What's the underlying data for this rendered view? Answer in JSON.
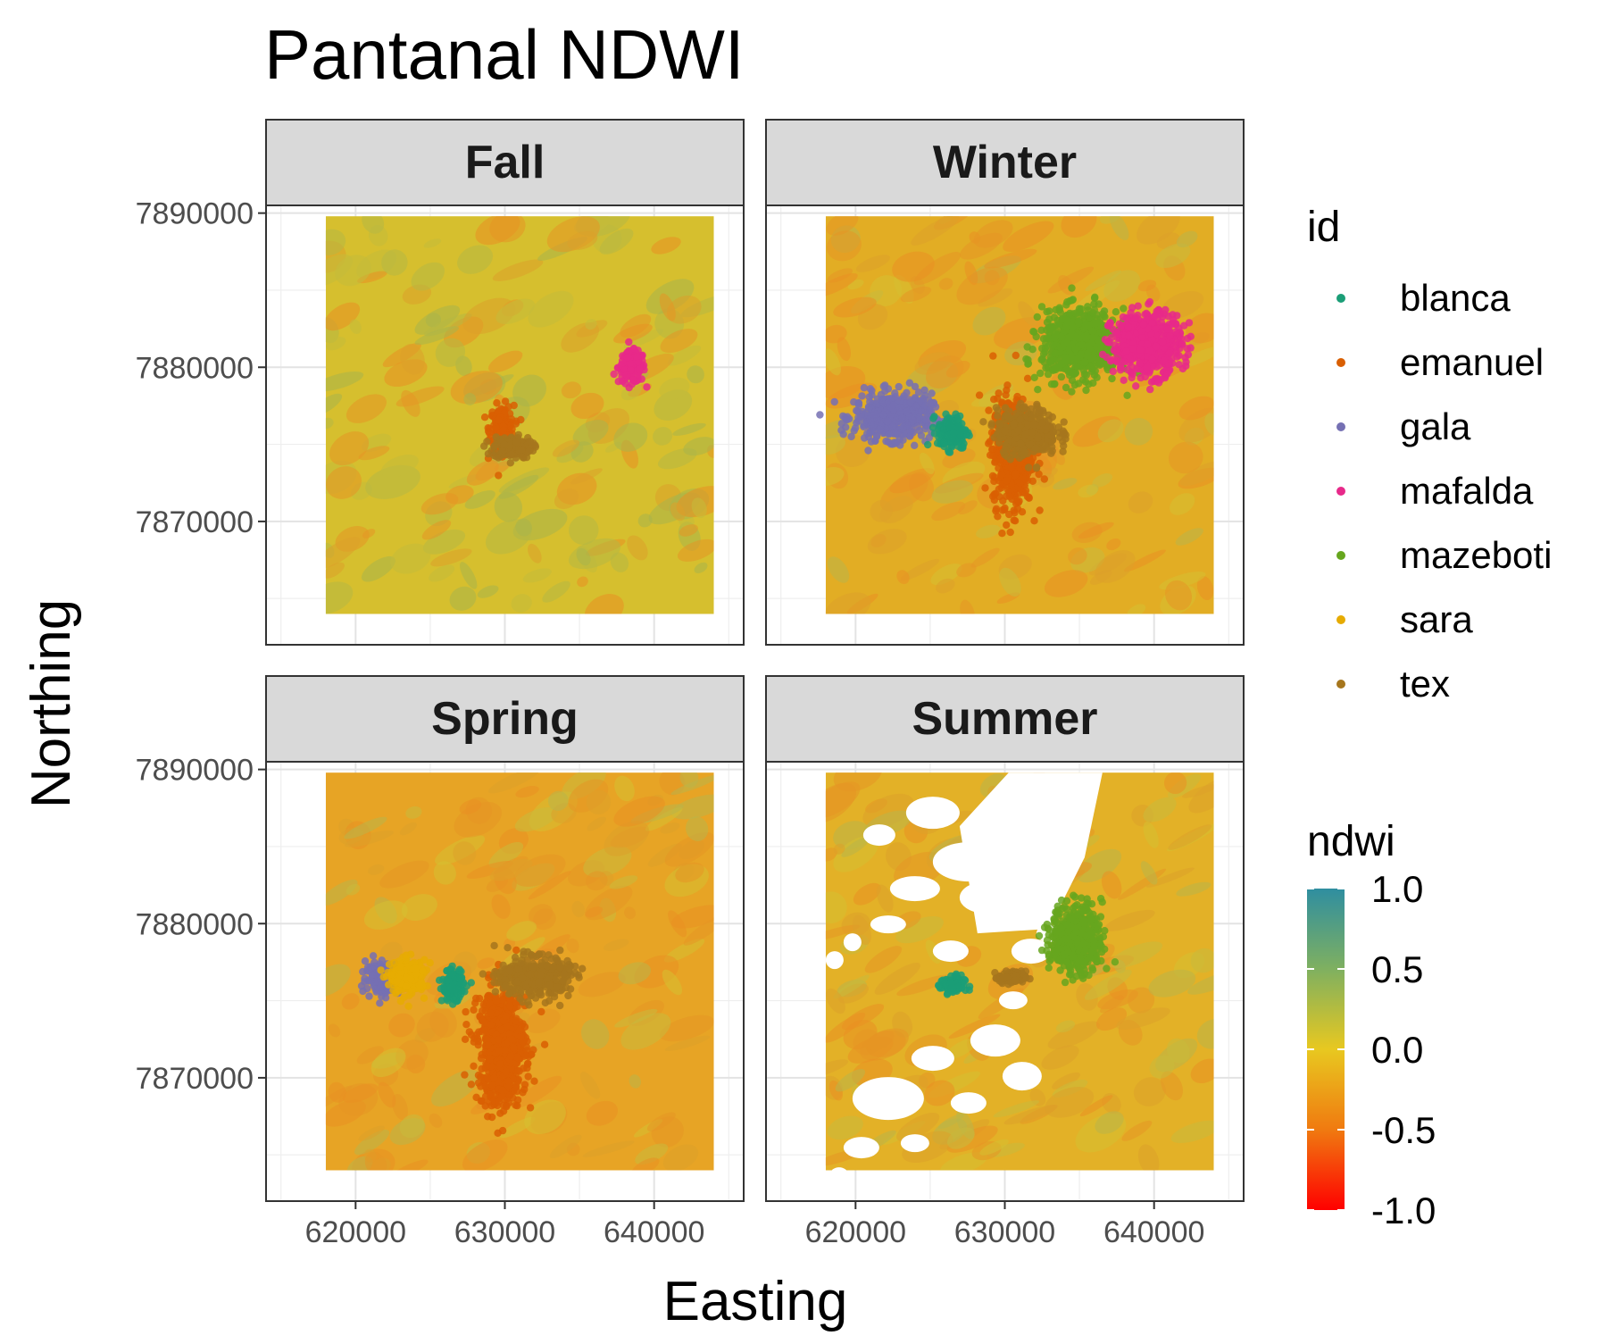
{
  "chart_data": {
    "type": "scatter",
    "title": "Pantanal NDWI",
    "xlabel": "Easting",
    "ylabel": "Northing",
    "xlim": [
      614000,
      646000
    ],
    "ylim": [
      7862000,
      7890500
    ],
    "x_ticks": [
      620000,
      630000,
      640000
    ],
    "x_tick_labels": [
      "620000",
      "630000",
      "640000"
    ],
    "y_ticks": [
      7870000,
      7880000,
      7890000
    ],
    "y_tick_labels": [
      "7870000",
      "7880000",
      "7890000"
    ],
    "grid": true,
    "facets": [
      "Fall",
      "Winter",
      "Spring",
      "Summer"
    ],
    "legend_position": "right",
    "series_legend": {
      "title": "id",
      "entries": [
        {
          "name": "blanca",
          "color": "#1b9e77"
        },
        {
          "name": "emanuel",
          "color": "#d95f02"
        },
        {
          "name": "gala",
          "color": "#7570b3"
        },
        {
          "name": "mafalda",
          "color": "#e7298a"
        },
        {
          "name": "mazeboti",
          "color": "#66a61e"
        },
        {
          "name": "sara",
          "color": "#e6ab02"
        },
        {
          "name": "tex",
          "color": "#a6761d"
        }
      ]
    },
    "colorbar": {
      "title": "ndwi",
      "limits": [
        -1.0,
        1.0
      ],
      "ticks": [
        1.0,
        0.5,
        0.0,
        -0.5,
        -1.0
      ],
      "tick_labels": [
        "1.0",
        "0.5",
        "0.0",
        "-0.5",
        "-1.0"
      ],
      "colors": [
        "#ff0000",
        "#f07a10",
        "#e8c820",
        "#7fb060",
        "#2f8ea0"
      ]
    },
    "panels": [
      {
        "season": "Fall",
        "raster_base": "#d6bf2e",
        "clusters": [
          {
            "id": "mafalda",
            "x": 638500,
            "y": 7880000,
            "spread_x": 900,
            "spread_y": 1000
          },
          {
            "id": "emanuel",
            "x": 629800,
            "y": 7876000,
            "spread_x": 800,
            "spread_y": 1500
          },
          {
            "id": "tex",
            "x": 630500,
            "y": 7874800,
            "spread_x": 1300,
            "spread_y": 700
          }
        ]
      },
      {
        "season": "Winter",
        "raster_base": "#e2ad24",
        "clusters": [
          {
            "id": "gala",
            "x": 622500,
            "y": 7876800,
            "spread_x": 2600,
            "spread_y": 1500
          },
          {
            "id": "blanca",
            "x": 626500,
            "y": 7875800,
            "spread_x": 1000,
            "spread_y": 1100
          },
          {
            "id": "emanuel",
            "x": 630500,
            "y": 7874500,
            "spread_x": 1300,
            "spread_y": 3500
          },
          {
            "id": "tex",
            "x": 631500,
            "y": 7875800,
            "spread_x": 2000,
            "spread_y": 1500
          },
          {
            "id": "mazeboti",
            "x": 635000,
            "y": 7881500,
            "spread_x": 2500,
            "spread_y": 2200
          },
          {
            "id": "mafalda",
            "x": 639500,
            "y": 7881500,
            "spread_x": 2300,
            "spread_y": 2000
          }
        ]
      },
      {
        "season": "Spring",
        "raster_base": "#e7a425",
        "clusters": [
          {
            "id": "gala",
            "x": 621800,
            "y": 7876500,
            "spread_x": 1100,
            "spread_y": 1000
          },
          {
            "id": "sara",
            "x": 623500,
            "y": 7876500,
            "spread_x": 1200,
            "spread_y": 1100
          },
          {
            "id": "blanca",
            "x": 626500,
            "y": 7876000,
            "spread_x": 700,
            "spread_y": 1000
          },
          {
            "id": "emanuel",
            "x": 629800,
            "y": 7872000,
            "spread_x": 1600,
            "spread_y": 3800
          },
          {
            "id": "tex",
            "x": 632000,
            "y": 7876500,
            "spread_x": 2300,
            "spread_y": 1300
          }
        ]
      },
      {
        "season": "Summer",
        "raster_base": "#e3b127",
        "clusters": [
          {
            "id": "mazeboti",
            "x": 634800,
            "y": 7879000,
            "spread_x": 1700,
            "spread_y": 2200
          },
          {
            "id": "blanca",
            "x": 626500,
            "y": 7876000,
            "spread_x": 800,
            "spread_y": 600
          },
          {
            "id": "tex",
            "x": 630500,
            "y": 7876500,
            "spread_x": 900,
            "spread_y": 400
          }
        ]
      }
    ]
  }
}
